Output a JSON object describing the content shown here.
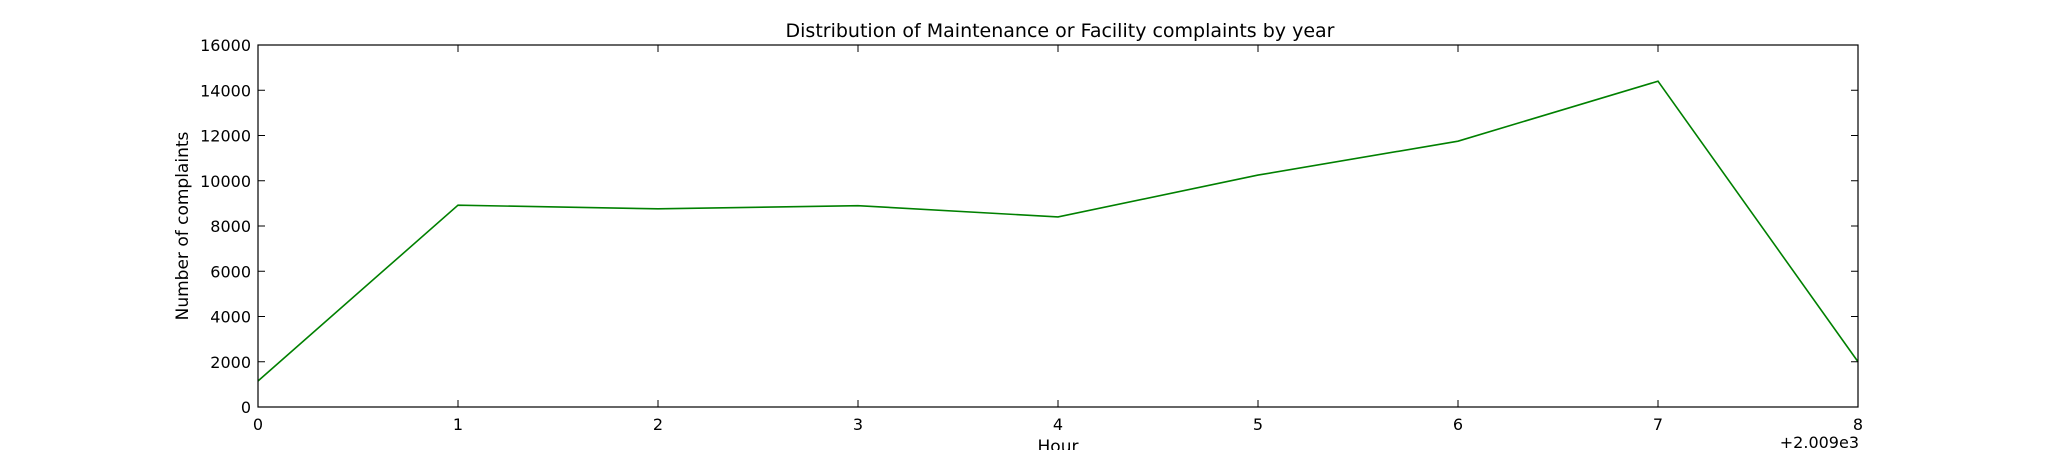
{
  "chart_data": {
    "type": "line",
    "title": "Distribution of  Maintenance or Facility complaints by year",
    "xlabel": "Hour",
    "ylabel": "Number of complaints",
    "x_offset_label": "+2.009e3",
    "x": [
      0,
      1,
      2,
      3,
      4,
      5,
      6,
      7,
      8
    ],
    "x_tick_labels": [
      "0",
      "1",
      "2",
      "3",
      "4",
      "5",
      "6",
      "7",
      "8"
    ],
    "y_tick_values": [
      0,
      2000,
      4000,
      6000,
      8000,
      10000,
      12000,
      14000,
      16000
    ],
    "y_tick_labels": [
      "0",
      "2000",
      "4000",
      "6000",
      "8000",
      "10000",
      "12000",
      "14000",
      "16000"
    ],
    "xlim": [
      0,
      8
    ],
    "ylim": [
      0,
      16000
    ],
    "grid": false,
    "series": [
      {
        "values": [
          1150,
          8920,
          8760,
          8900,
          8400,
          10250,
          11750,
          14400,
          2000
        ],
        "color": "#008000"
      }
    ]
  }
}
